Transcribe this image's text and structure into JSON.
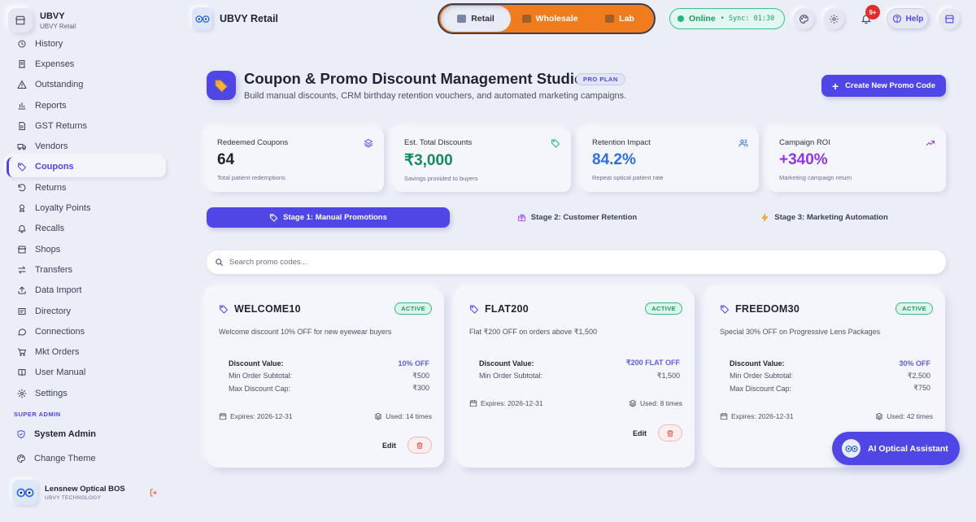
{
  "brand": {
    "name": "UBVY",
    "sub": "UBVY Retail"
  },
  "sidebar": {
    "items": [
      {
        "label": "History",
        "icon": "history-icon"
      },
      {
        "label": "Expenses",
        "icon": "receipt-icon"
      },
      {
        "label": "Outstanding",
        "icon": "warning-icon"
      },
      {
        "label": "Reports",
        "icon": "bar-chart-icon"
      },
      {
        "label": "GST Returns",
        "icon": "document-icon"
      },
      {
        "label": "Vendors",
        "icon": "truck-icon"
      },
      {
        "label": "Coupons",
        "icon": "tag-icon"
      },
      {
        "label": "Returns",
        "icon": "undo-icon"
      },
      {
        "label": "Loyalty Points",
        "icon": "award-icon"
      },
      {
        "label": "Recalls",
        "icon": "bell-icon"
      },
      {
        "label": "Shops",
        "icon": "store-icon"
      },
      {
        "label": "Transfers",
        "icon": "transfer-icon"
      },
      {
        "label": "Data Import",
        "icon": "upload-icon"
      },
      {
        "label": "Directory",
        "icon": "directory-icon"
      },
      {
        "label": "Connections",
        "icon": "chat-icon"
      },
      {
        "label": "Mkt Orders",
        "icon": "cart-icon"
      },
      {
        "label": "User Manual",
        "icon": "book-icon"
      },
      {
        "label": "Settings",
        "icon": "gear-icon"
      }
    ],
    "active_index": 6,
    "section_label": "SUPER ADMIN",
    "system_admin": "System Admin",
    "change_theme": "Change Theme"
  },
  "profile": {
    "name": "Lensnew Optical BOS",
    "sub": "UBVY TECHNOLOGY"
  },
  "topbar": {
    "title": "UBVY Retail",
    "segments": [
      "Retail",
      "Wholesale",
      "Lab"
    ],
    "active_segment": "Retail",
    "status": "Online",
    "sync": "Sync: 01:30",
    "notifications": "9+",
    "help": "Help"
  },
  "header": {
    "title": "Coupon & Promo Discount Management Studio",
    "badge": "PRO PLAN",
    "subtitle": "Build manual discounts, CRM birthday retention vouchers, and automated marketing campaigns.",
    "create_button": "Create New Promo Code"
  },
  "stats": [
    {
      "label": "Redeemed Coupons",
      "value": "64",
      "note": "Total patient redemptions",
      "color": "#1f2333",
      "icon": "layers-icon"
    },
    {
      "label": "Est. Total Discounts",
      "value": "₹3,000",
      "note": "Savings provided to buyers",
      "color": "#128a5c",
      "icon": "tag-icon"
    },
    {
      "label": "Retention Impact",
      "value": "84.2%",
      "note": "Repeat optical patient rate",
      "color": "#2f6fe0",
      "icon": "users-icon"
    },
    {
      "label": "Campaign ROI",
      "value": "+340%",
      "note": "Marketing campaign return",
      "color": "#9333ea",
      "icon": "trending-up-icon"
    }
  ],
  "stages": [
    "Stage 1: Manual Promotions",
    "Stage 2: Customer Retention",
    "Stage 3: Marketing Automation"
  ],
  "search": {
    "placeholder": "Search promo codes..."
  },
  "coupons": [
    {
      "code": "WELCOME10",
      "status": "ACTIVE",
      "description": "Welcome discount 10% OFF for new eyewear buyers",
      "rows": [
        [
          "Discount Value:",
          "10% OFF"
        ],
        [
          "Min Order Subtotal:",
          "₹500"
        ],
        [
          "Max Discount Cap:",
          "₹300"
        ]
      ],
      "expires": "Expires: 2026-12-31",
      "used": "Used: 14 times",
      "edit": "Edit"
    },
    {
      "code": "FLAT200",
      "status": "ACTIVE",
      "description": "Flat ₹200 OFF on orders above ₹1,500",
      "rows": [
        [
          "Discount Value:",
          "₹200 FLAT OFF"
        ],
        [
          "Min Order Subtotal:",
          "₹1,500"
        ]
      ],
      "expires": "Expires: 2026-12-31",
      "used": "Used: 8 times",
      "edit": "Edit"
    },
    {
      "code": "FREEDOM30",
      "status": "ACTIVE",
      "description": "Special 30% OFF on Progressive Lens Packages",
      "rows": [
        [
          "Discount Value:",
          "30% OFF"
        ],
        [
          "Min Order Subtotal:",
          "₹2,500"
        ],
        [
          "Max Discount Cap:",
          "₹750"
        ]
      ],
      "expires": "Expires: 2026-12-31",
      "used": "Used: 42 times",
      "edit": "Edit"
    }
  ],
  "assistant": {
    "label": "AI Optical Assistant"
  }
}
